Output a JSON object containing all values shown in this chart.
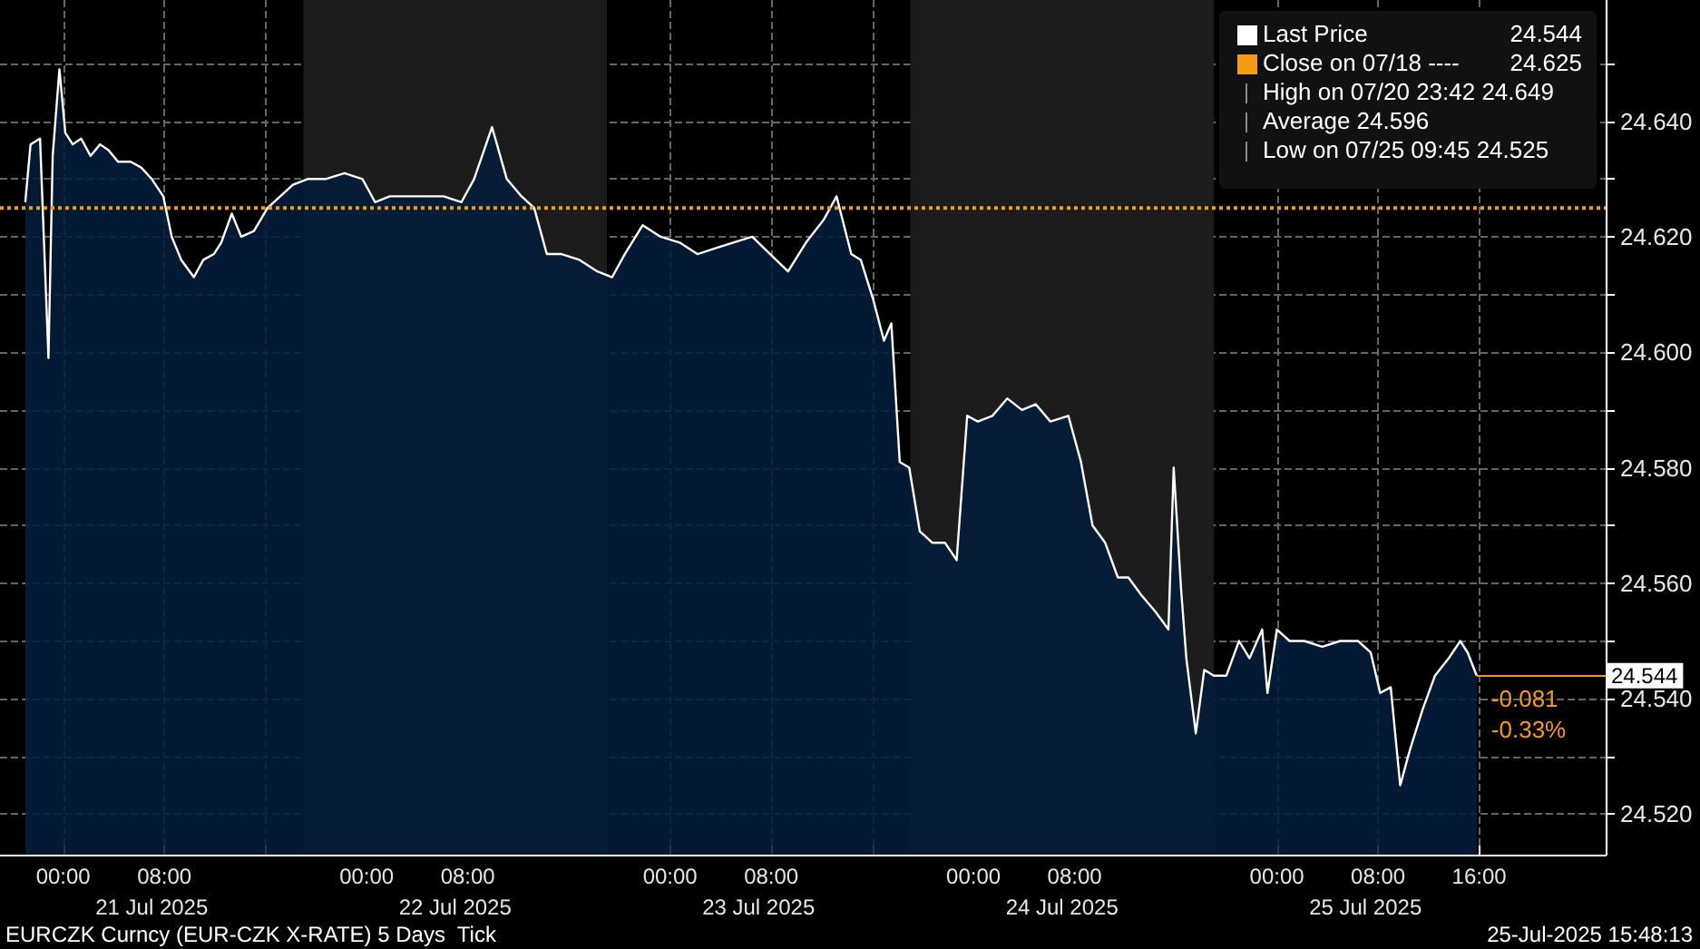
{
  "chart_data": {
    "type": "area",
    "title": "EURCZK Curncy (EUR-CZK X-RATE) 5 Days  Tick",
    "subtitle": "25-Jul-2025 15:48:13",
    "x": [
      "2025-07-20T21:00",
      "2025-07-20T21:25",
      "2025-07-20T22:10",
      "2025-07-20T22:50",
      "2025-07-20T23:10",
      "2025-07-20T23:42",
      "2025-07-21T00:10",
      "2025-07-21T00:45",
      "2025-07-21T01:25",
      "2025-07-21T02:10",
      "2025-07-21T02:55",
      "2025-07-21T03:35",
      "2025-07-21T04:20",
      "2025-07-21T05:20",
      "2025-07-21T06:10",
      "2025-07-21T07:00",
      "2025-07-21T07:55",
      "2025-07-21T08:35",
      "2025-07-21T09:20",
      "2025-07-21T10:20",
      "2025-07-21T11:05",
      "2025-07-21T11:55",
      "2025-07-21T12:30",
      "2025-07-21T13:20",
      "2025-07-21T14:05",
      "2025-07-21T15:05",
      "2025-07-21T16:10",
      "2025-07-21T17:10",
      "2025-07-21T18:10",
      "2025-07-21T19:20",
      "2025-07-21T20:45",
      "2025-07-21T22:15",
      "2025-07-21T23:40",
      "2025-07-22T00:40",
      "2025-07-22T01:50",
      "2025-07-22T03:15",
      "2025-07-22T04:40",
      "2025-07-22T06:05",
      "2025-07-22T07:30",
      "2025-07-22T08:30",
      "2025-07-22T09:55",
      "2025-07-22T11:05",
      "2025-07-22T12:15",
      "2025-07-22T13:15",
      "2025-07-22T14:15",
      "2025-07-22T15:25",
      "2025-07-22T16:50",
      "2025-07-22T18:15",
      "2025-07-22T19:25",
      "2025-07-22T20:25",
      "2025-07-22T21:50",
      "2025-07-22T23:15",
      "2025-07-23T00:45",
      "2025-07-23T02:10",
      "2025-07-23T03:35",
      "2025-07-23T05:00",
      "2025-07-23T06:30",
      "2025-07-23T07:55",
      "2025-07-23T09:20",
      "2025-07-23T10:45",
      "2025-07-23T12:10",
      "2025-07-23T13:10",
      "2025-07-23T14:20",
      "2025-07-23T15:05",
      "2025-07-23T16:05",
      "2025-07-23T16:55",
      "2025-07-23T17:30",
      "2025-07-23T18:10",
      "2025-07-23T18:55",
      "2025-07-23T19:45",
      "2025-07-23T20:45",
      "2025-07-23T21:45",
      "2025-07-23T22:40",
      "2025-07-23T23:30",
      "2025-07-24T00:20",
      "2025-07-24T01:30",
      "2025-07-24T02:40",
      "2025-07-24T03:50",
      "2025-07-24T04:55",
      "2025-07-24T06:05",
      "2025-07-24T07:30",
      "2025-07-24T08:30",
      "2025-07-24T09:25",
      "2025-07-24T10:25",
      "2025-07-24T11:25",
      "2025-07-24T12:15",
      "2025-07-24T13:15",
      "2025-07-24T14:25",
      "2025-07-24T15:25",
      "2025-07-24T15:50",
      "2025-07-24T16:25",
      "2025-07-24T16:50",
      "2025-07-24T17:35",
      "2025-07-24T18:15",
      "2025-07-24T19:00",
      "2025-07-24T20:00",
      "2025-07-24T21:00",
      "2025-07-24T21:50",
      "2025-07-24T22:50",
      "2025-07-24T23:15",
      "2025-07-25T00:00",
      "2025-07-25T01:00",
      "2025-07-25T02:10",
      "2025-07-25T03:35",
      "2025-07-25T05:00",
      "2025-07-25T06:25",
      "2025-07-25T07:25",
      "2025-07-25T08:10",
      "2025-07-25T09:00",
      "2025-07-25T09:45",
      "2025-07-25T10:30",
      "2025-07-25T11:30",
      "2025-07-25T12:30",
      "2025-07-25T13:35",
      "2025-07-25T14:30",
      "2025-07-25T15:05",
      "2025-07-25T15:48"
    ],
    "series": [
      {
        "name": "Last Price",
        "color": "#ffffff",
        "values": [
          24.626,
          24.636,
          24.637,
          24.599,
          24.634,
          24.649,
          24.638,
          24.636,
          24.637,
          24.634,
          24.636,
          24.635,
          24.633,
          24.633,
          24.632,
          24.63,
          24.627,
          24.62,
          24.616,
          24.613,
          24.616,
          24.617,
          24.619,
          24.624,
          24.62,
          24.621,
          24.625,
          24.627,
          24.629,
          24.63,
          24.63,
          24.631,
          24.63,
          24.626,
          24.627,
          24.627,
          24.627,
          24.627,
          24.626,
          24.63,
          24.639,
          24.63,
          24.627,
          24.625,
          24.617,
          24.617,
          24.616,
          24.614,
          24.613,
          24.617,
          24.622,
          24.62,
          24.619,
          24.617,
          24.618,
          24.619,
          24.62,
          24.617,
          24.614,
          24.619,
          24.623,
          24.627,
          24.617,
          24.616,
          24.609,
          24.602,
          24.605,
          24.581,
          24.58,
          24.569,
          24.567,
          24.567,
          24.564,
          24.589,
          24.588,
          24.589,
          24.592,
          24.59,
          24.591,
          24.588,
          24.589,
          24.581,
          24.57,
          24.567,
          24.561,
          24.561,
          24.558,
          24.555,
          24.552,
          24.58,
          24.559,
          24.547,
          24.534,
          24.545,
          24.544,
          24.544,
          24.55,
          24.547,
          24.552,
          24.541,
          24.552,
          24.55,
          24.55,
          24.549,
          24.55,
          24.55,
          24.548,
          24.541,
          24.542,
          24.525,
          24.531,
          24.538,
          24.544,
          24.547,
          24.55,
          24.548,
          24.544
        ]
      }
    ],
    "xlim": [
      "2025-07-20T19:00",
      "2025-07-26T02:00"
    ],
    "xticks": [
      {
        "value": "2025-07-21T00:00",
        "label": "00:00"
      },
      {
        "value": "2025-07-21T08:00",
        "label": "08:00"
      },
      {
        "value": "2025-07-21T16:00",
        "label": null
      },
      {
        "value": "2025-07-22T00:00",
        "label": "00:00"
      },
      {
        "value": "2025-07-22T08:00",
        "label": "08:00"
      },
      {
        "value": "2025-07-22T16:00",
        "label": null
      },
      {
        "value": "2025-07-23T00:00",
        "label": "00:00"
      },
      {
        "value": "2025-07-23T08:00",
        "label": "08:00"
      },
      {
        "value": "2025-07-23T16:00",
        "label": null
      },
      {
        "value": "2025-07-24T00:00",
        "label": "00:00"
      },
      {
        "value": "2025-07-24T08:00",
        "label": "08:00"
      },
      {
        "value": "2025-07-24T16:00",
        "label": null
      },
      {
        "value": "2025-07-25T00:00",
        "label": "00:00"
      },
      {
        "value": "2025-07-25T08:00",
        "label": "08:00"
      },
      {
        "value": "2025-07-25T16:00",
        "label": "16:00"
      }
    ],
    "x2lim": [
      "2025-07-20T19:00",
      "2025-07-26T02:00"
    ],
    "x2ticks": [
      {
        "value": "2025-07-21T07:00",
        "label": "21 Jul 2025"
      },
      {
        "value": "2025-07-22T07:00",
        "label": "22 Jul 2025"
      },
      {
        "value": "2025-07-23T07:00",
        "label": "23 Jul 2025"
      },
      {
        "value": "2025-07-24T07:00",
        "label": "24 Jul 2025"
      },
      {
        "value": "2025-07-25T07:00",
        "label": "25 Jul 2025"
      }
    ],
    "ylim": [
      24.513,
      24.661
    ],
    "yticks": [
      {
        "value": 24.52,
        "label": "24.520"
      },
      {
        "value": 24.53,
        "label": null
      },
      {
        "value": 24.54,
        "label": "24.540"
      },
      {
        "value": 24.55,
        "label": null
      },
      {
        "value": 24.56,
        "label": "24.560"
      },
      {
        "value": 24.57,
        "label": null
      },
      {
        "value": 24.58,
        "label": "24.580"
      },
      {
        "value": 24.59,
        "label": null
      },
      {
        "value": 24.6,
        "label": "24.600"
      },
      {
        "value": 24.61,
        "label": null
      },
      {
        "value": 24.62,
        "label": "24.620"
      },
      {
        "value": 24.63,
        "label": null
      },
      {
        "value": 24.64,
        "label": "24.640"
      },
      {
        "value": 24.65,
        "label": null
      }
    ],
    "ref_lines": [
      {
        "axis": "y",
        "value": 24.625,
        "label": "Close on 07/18 ----",
        "color": "#f39c12",
        "line_style": "dotted"
      }
    ],
    "bands": [
      {
        "axis": "x",
        "from": "2025-07-21T19:00",
        "to": "2025-07-22T19:00",
        "color": "#1c1c1c"
      },
      {
        "axis": "x",
        "from": "2025-07-23T19:00",
        "to": "2025-07-24T19:00",
        "color": "#1c1c1c"
      }
    ],
    "annotations": [
      "24.544",
      "24.625",
      "High on 07/20 23:42 24.649",
      "Average 24.596",
      "Low on 07/25 09:45 24.525",
      {
        "text": "24.544",
        "x": "2025-07-25T15:48",
        "y": 24.544
      },
      "-0.081",
      "-0.33%"
    ],
    "grid": true,
    "legend": "top right"
  }
}
